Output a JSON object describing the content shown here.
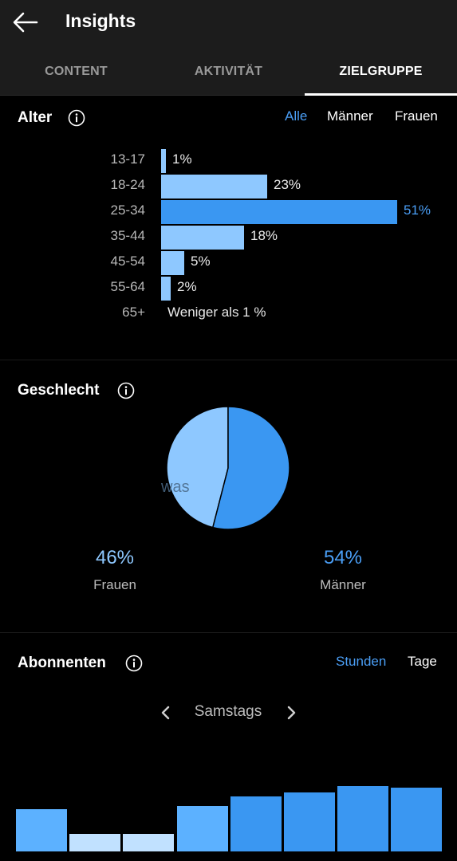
{
  "header": {
    "title": "Insights"
  },
  "tabs": [
    {
      "label": "CONTENT"
    },
    {
      "label": "AKTIVITÄT"
    },
    {
      "label": "ZIELGRUPPE"
    }
  ],
  "age": {
    "title": "Alter",
    "filters": [
      "Alle",
      "Männer",
      "Frauen"
    ],
    "active_filter": "Alle",
    "rows": [
      {
        "label": "13-17",
        "value": 1,
        "text": "1%"
      },
      {
        "label": "18-24",
        "value": 23,
        "text": "23%"
      },
      {
        "label": "25-34",
        "value": 51,
        "text": "51%"
      },
      {
        "label": "35-44",
        "value": 18,
        "text": "18%"
      },
      {
        "label": "45-54",
        "value": 5,
        "text": "5%"
      },
      {
        "label": "55-64",
        "value": 2,
        "text": "2%"
      },
      {
        "label": "65+",
        "value": 0,
        "text": "Weniger als 1 %"
      }
    ]
  },
  "gender": {
    "title": "Geschlecht",
    "ghost_text": "was",
    "women": {
      "label": "Frauen",
      "value": 46,
      "text": "46%"
    },
    "men": {
      "label": "Männer",
      "value": 54,
      "text": "54%"
    }
  },
  "followers": {
    "title": "Abonnenten",
    "filters": [
      "Stunden",
      "Tage"
    ],
    "active_filter": "Stunden",
    "day": "Samstags",
    "columns": [
      {
        "value": 53,
        "level": "mid"
      },
      {
        "value": 22,
        "level": "low"
      },
      {
        "value": 22,
        "level": "low"
      },
      {
        "value": 57,
        "level": "mid"
      },
      {
        "value": 69,
        "level": "high"
      },
      {
        "value": 74,
        "level": "high"
      },
      {
        "value": 82,
        "level": "high"
      },
      {
        "value": 80,
        "level": "high"
      }
    ]
  },
  "colors": {
    "accent": "#4a9ef5",
    "bar_light": "#8ec8ff",
    "bar_top": "#3a97f2",
    "col_low": "#c1e1ff",
    "col_mid": "#5cb1ff",
    "col_high": "#3a97f2"
  },
  "chart_data": [
    {
      "type": "bar",
      "orientation": "horizontal",
      "categories": [
        "13-17",
        "18-24",
        "25-34",
        "35-44",
        "45-54",
        "55-64",
        "65+"
      ],
      "values": [
        1,
        23,
        51,
        18,
        5,
        2,
        0
      ],
      "title": "Alter"
    },
    {
      "type": "pie",
      "categories": [
        "Frauen",
        "Männer"
      ],
      "values": [
        46,
        54
      ],
      "title": "Geschlecht"
    },
    {
      "type": "bar",
      "values": [
        53,
        22,
        22,
        57,
        69,
        74,
        82,
        80
      ],
      "title": "Abonnenten",
      "ylim": [
        0,
        100
      ]
    }
  ]
}
